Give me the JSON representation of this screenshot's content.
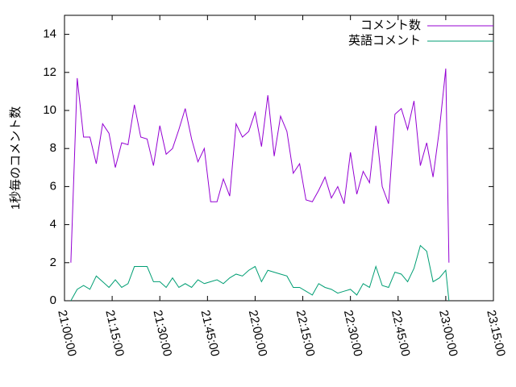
{
  "chart_data": {
    "type": "line",
    "y_label": "1秒毎のコメント数",
    "x": [
      "21:02:00",
      "21:04:00",
      "21:06:00",
      "21:08:00",
      "21:10:00",
      "21:12:00",
      "21:14:00",
      "21:16:00",
      "21:18:00",
      "21:20:00",
      "21:22:00",
      "21:24:00",
      "21:26:00",
      "21:28:00",
      "21:30:00",
      "21:32:00",
      "21:34:00",
      "21:36:00",
      "21:38:00",
      "21:40:00",
      "21:42:00",
      "21:44:00",
      "21:46:00",
      "21:48:00",
      "21:50:00",
      "21:52:00",
      "21:54:00",
      "21:56:00",
      "21:58:00",
      "22:00:00",
      "22:02:00",
      "22:04:00",
      "22:06:00",
      "22:08:00",
      "22:10:00",
      "22:12:00",
      "22:14:00",
      "22:16:00",
      "22:18:00",
      "22:20:00",
      "22:22:00",
      "22:24:00",
      "22:26:00",
      "22:28:00",
      "22:30:00",
      "22:32:00",
      "22:34:00",
      "22:36:00",
      "22:38:00",
      "22:40:00",
      "22:42:00",
      "22:44:00",
      "22:46:00",
      "22:48:00",
      "22:50:00",
      "22:52:00",
      "22:54:00",
      "22:56:00",
      "22:58:00",
      "23:00:00",
      "23:01:00"
    ],
    "series": [
      {
        "name": "コメント数",
        "color": "#9400d3",
        "values": [
          2.0,
          11.7,
          8.6,
          8.6,
          7.2,
          9.3,
          8.8,
          7.0,
          8.3,
          8.2,
          10.3,
          8.6,
          8.5,
          7.1,
          9.2,
          7.7,
          8.0,
          9.0,
          10.1,
          8.5,
          7.3,
          8.0,
          5.2,
          5.2,
          6.4,
          5.5,
          9.3,
          8.6,
          8.9,
          9.9,
          8.1,
          10.8,
          7.6,
          9.7,
          8.9,
          6.7,
          7.2,
          5.3,
          5.2,
          5.8,
          6.5,
          5.4,
          6.0,
          5.1,
          7.8,
          5.6,
          6.8,
          6.2,
          9.2,
          6.0,
          5.1,
          9.8,
          10.1,
          9.0,
          10.5,
          7.1,
          8.3,
          6.5,
          9.0,
          12.2,
          2.0
        ]
      },
      {
        "name": "英語コメント",
        "color": "#009e73",
        "values": [
          0.0,
          0.6,
          0.8,
          0.6,
          1.3,
          1.0,
          0.7,
          1.1,
          0.7,
          0.9,
          1.8,
          1.8,
          1.8,
          1.0,
          1.0,
          0.7,
          1.2,
          0.7,
          0.9,
          0.7,
          1.1,
          0.9,
          1.0,
          1.1,
          0.9,
          1.2,
          1.4,
          1.3,
          1.6,
          1.8,
          1.0,
          1.6,
          1.5,
          1.4,
          1.3,
          0.7,
          0.7,
          0.5,
          0.3,
          0.9,
          0.7,
          0.6,
          0.4,
          0.5,
          0.6,
          0.3,
          0.9,
          0.7,
          1.8,
          0.8,
          0.7,
          1.5,
          1.4,
          1.0,
          1.7,
          2.9,
          2.6,
          1.0,
          1.2,
          1.6,
          0.0
        ]
      }
    ],
    "xlim": [
      "21:00:00",
      "23:15:00"
    ],
    "xticks": [
      "21:00:00",
      "21:15:00",
      "21:30:00",
      "21:45:00",
      "22:00:00",
      "22:15:00",
      "22:30:00",
      "22:45:00",
      "23:00:00",
      "23:15:00"
    ],
    "ylim": [
      0,
      15
    ],
    "yticks": [
      0,
      2,
      4,
      6,
      8,
      10,
      12,
      14
    ],
    "legend": "top-right",
    "grid": false
  }
}
